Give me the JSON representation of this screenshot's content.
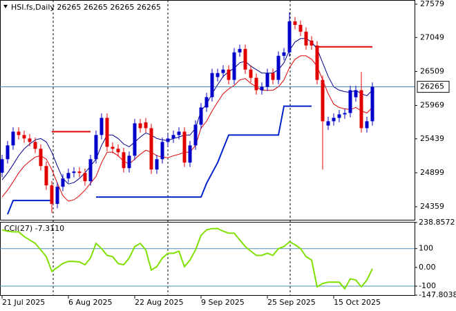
{
  "chart_data": [
    {
      "type": "candlestick",
      "title": "HSI.fs,Daily  26265 26265 26265 26265",
      "categories": [
        "21 Jul 2025",
        null,
        null,
        null,
        null,
        null,
        null,
        null,
        null,
        null,
        null,
        null,
        "6 Aug 2025",
        null,
        null,
        null,
        null,
        null,
        null,
        null,
        null,
        null,
        null,
        null,
        "22 Aug 2025",
        null,
        null,
        null,
        null,
        null,
        null,
        null,
        null,
        null,
        null,
        null,
        "9 Sep 2025",
        null,
        null,
        null,
        null,
        null,
        null,
        null,
        null,
        null,
        null,
        null,
        "25 Sep 2025",
        null,
        null,
        null,
        null,
        null,
        null,
        null,
        null,
        null,
        null,
        null,
        "15 Oct 2025",
        null,
        null,
        null,
        null,
        null,
        null,
        null
      ],
      "open": [
        24900,
        25115,
        25334,
        25553,
        25499,
        25444,
        25389,
        25280,
        25006,
        24699,
        24404,
        24677,
        24809,
        24896,
        24918,
        24896,
        24765,
        25115,
        25499,
        25772,
        25312,
        25280,
        25225,
        24973,
        25170,
        25685,
        25700,
        25608,
        24951,
        25115,
        25389,
        25444,
        25499,
        25553,
        25061,
        25334,
        25663,
        25937,
        26101,
        26420,
        26484,
        26539,
        26375,
        26813,
        26867,
        26539,
        26408,
        26211,
        26265,
        26484,
        26375,
        26758,
        26813,
        27305,
        27250,
        27141,
        27000,
        26922,
        26375,
        25650,
        25718,
        25772,
        25827,
        25849,
        26100,
        26211,
        25608,
        25718
      ],
      "high": [
        25185,
        25404,
        25623,
        25623,
        25569,
        25514,
        25459,
        25350,
        25076,
        24769,
        24747,
        24879,
        24966,
        24988,
        24988,
        24966,
        25185,
        25569,
        25842,
        25842,
        25382,
        25350,
        25295,
        25240,
        25755,
        25755,
        25770,
        25678,
        25185,
        25459,
        25514,
        25569,
        25623,
        25623,
        25404,
        25733,
        26007,
        26171,
        26554,
        26554,
        26609,
        26609,
        26883,
        26937,
        26937,
        26609,
        26478,
        26335,
        26554,
        26554,
        26828,
        26883,
        27450,
        27375,
        27320,
        27211,
        27070,
        26992,
        26445,
        25788,
        25842,
        25897,
        25919,
        26281,
        26281,
        26500,
        25788,
        26335
      ],
      "low": [
        24830,
        25045,
        25264,
        25429,
        25374,
        25319,
        25210,
        24936,
        24629,
        24260,
        24334,
        24607,
        24739,
        24826,
        24826,
        24695,
        24695,
        25045,
        25429,
        25242,
        25210,
        25155,
        24903,
        24903,
        25100,
        25538,
        25538,
        24881,
        24881,
        25045,
        25319,
        25374,
        25429,
        24991,
        24991,
        25264,
        25593,
        25867,
        26031,
        26350,
        26414,
        26305,
        26305,
        26743,
        26469,
        26338,
        26141,
        26141,
        26195,
        26305,
        26305,
        26688,
        26743,
        27180,
        27071,
        26852,
        26852,
        26305,
        24950,
        25580,
        25648,
        25702,
        25757,
        25779,
        26030,
        25538,
        25538,
        25648
      ],
      "close": [
        25115,
        25334,
        25553,
        25499,
        25444,
        25389,
        25280,
        25006,
        24699,
        24404,
        24677,
        24809,
        24896,
        24918,
        24896,
        24765,
        25115,
        25499,
        25772,
        25312,
        25280,
        25225,
        24973,
        25170,
        25685,
        25608,
        25608,
        24951,
        25115,
        25389,
        25444,
        25499,
        25553,
        25061,
        25334,
        25663,
        25937,
        26101,
        26484,
        26484,
        26539,
        26375,
        26813,
        26867,
        26539,
        26408,
        26211,
        26265,
        26484,
        26375,
        26758,
        26813,
        27305,
        27250,
        27141,
        26922,
        26922,
        26375,
        25718,
        25718,
        25772,
        25827,
        25849,
        26211,
        26211,
        25608,
        25718,
        26265
      ],
      "up_color": "#0000c8",
      "down_color": "#e00000",
      "lines": [
        {
          "color": "#00008b",
          "values": [
            24787,
            24897,
            25028,
            25170,
            25280,
            25356,
            25422,
            25444,
            25389,
            25225,
            25006,
            24809,
            24721,
            24743,
            24809,
            24897,
            25006,
            25115,
            25334,
            25499,
            25499,
            25444,
            25356,
            25312,
            25389,
            25466,
            25532,
            25499,
            25444,
            25422,
            25411,
            25444,
            25466,
            25499,
            25499,
            25608,
            25882,
            25992,
            26156,
            26298,
            26430,
            26506,
            26561,
            26648,
            26670,
            26594,
            26539,
            26484,
            26484,
            26484,
            26539,
            26648,
            26846,
            26977,
            27032,
            27032,
            26977,
            26867,
            26648,
            26430,
            26265,
            26211,
            26189,
            26178,
            26211,
            26156,
            26123,
            26211
          ]
        },
        {
          "color": "#e00000",
          "values": [
            24513,
            24623,
            24754,
            24896,
            25006,
            25082,
            25148,
            25170,
            25115,
            24951,
            24732,
            24535,
            24447,
            24469,
            24535,
            24623,
            24732,
            24841,
            25060,
            25225,
            25225,
            25170,
            25082,
            25038,
            25115,
            25192,
            25258,
            25225,
            25170,
            25148,
            25137,
            25170,
            25192,
            25225,
            25225,
            25334,
            25608,
            25718,
            25882,
            26024,
            26156,
            26232,
            26287,
            26374,
            26396,
            26320,
            26265,
            26210,
            26210,
            26210,
            26265,
            26374,
            26572,
            26703,
            26758,
            26758,
            26703,
            26593,
            26374,
            26156,
            25991,
            25937,
            25915,
            25904,
            25937,
            25882,
            25849,
            25937
          ]
        },
        {
          "color": "#0022cc",
          "values": [
            null,
            24240,
            24458,
            24458,
            24458,
            24458,
            24458,
            24458,
            24458,
            24458,
            null,
            null,
            null,
            null,
            null,
            null,
            null,
            24513,
            24513,
            24513,
            24513,
            24513,
            24513,
            24513,
            24513,
            24513,
            24513,
            24513,
            24513,
            24513,
            24513,
            24513,
            24513,
            24513,
            24513,
            24513,
            24513,
            24732,
            24897,
            25060,
            25280,
            25499,
            25499,
            25499,
            25499,
            25499,
            25499,
            25499,
            25499,
            25499,
            25499,
            25958,
            25958,
            25958,
            25958,
            25958,
            25958,
            null,
            null,
            null,
            null,
            null,
            null,
            null,
            null,
            null,
            null,
            null
          ]
        },
        {
          "color": "#e00000",
          "values": [
            null,
            null,
            null,
            null,
            null,
            null,
            null,
            null,
            null,
            25553,
            25553,
            25553,
            25553,
            25553,
            25553,
            25553,
            25553,
            null,
            null,
            null,
            null,
            null,
            null,
            null,
            null,
            null,
            null,
            null,
            null,
            null,
            null,
            null,
            null,
            null,
            null,
            null,
            null,
            null,
            null,
            null,
            null,
            null,
            null,
            null,
            null,
            null,
            null,
            null,
            null,
            null,
            null,
            null,
            null,
            null,
            null,
            null,
            null,
            26900,
            26900,
            26900,
            26900,
            26900,
            26900,
            26900,
            26900,
            26900,
            26900,
            26900
          ]
        }
      ],
      "current_price": 26265,
      "ylim": [
        24152,
        27634
      ],
      "yticks": [
        27579,
        27049,
        26509,
        25969,
        25439,
        24899,
        24359
      ]
    },
    {
      "type": "line",
      "title": "CCI(27) -7.3110",
      "color": "#7fe000",
      "values": [
        200,
        193,
        189,
        189,
        164,
        146,
        128,
        93,
        57,
        -21,
        0,
        21,
        32,
        32,
        29,
        14,
        50,
        128,
        100,
        64,
        57,
        21,
        14,
        50,
        111,
        128,
        93,
        -14,
        4,
        50,
        75,
        75,
        86,
        4,
        39,
        93,
        171,
        200,
        207,
        207,
        193,
        182,
        182,
        146,
        111,
        86,
        64,
        64,
        75,
        64,
        100,
        111,
        136,
        121,
        100,
        57,
        39,
        -104,
        -86,
        -79,
        -79,
        -79,
        -114,
        -61,
        -68,
        -104,
        -68,
        -7.311
      ],
      "ylim": [
        -147.8038,
        238.8572
      ],
      "yticks": [
        238.8572,
        100,
        {
          "value": 0,
          "label": "0.00"
        },
        -100,
        -147.8038
      ],
      "levels": [
        100,
        -100
      ]
    }
  ]
}
